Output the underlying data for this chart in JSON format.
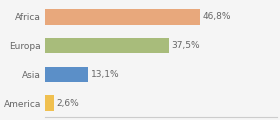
{
  "categories": [
    "America",
    "Asia",
    "Europa",
    "Africa"
  ],
  "values": [
    2.6,
    13.1,
    37.5,
    46.8
  ],
  "labels": [
    "2,6%",
    "13,1%",
    "37,5%",
    "46,8%"
  ],
  "bar_colors": [
    "#f0c050",
    "#5b8fc8",
    "#a8bc7b",
    "#e8a87c"
  ],
  "background_color": "#f5f5f5",
  "xlim": [
    0,
    70
  ],
  "label_fontsize": 6.5,
  "tick_fontsize": 6.5,
  "bar_height": 0.55
}
